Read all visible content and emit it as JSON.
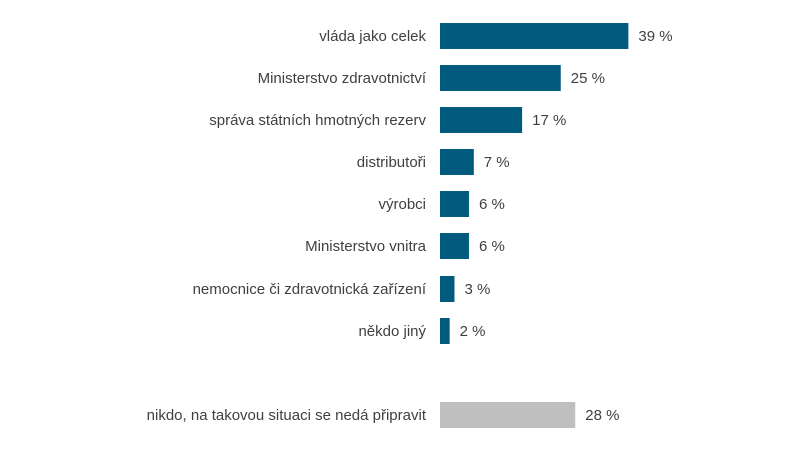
{
  "chart_data": {
    "type": "bar",
    "orientation": "horizontal",
    "categories": [
      "vláda jako celek",
      "Ministerstvo zdravotnictví",
      "správa státních hmotných rezerv",
      "distributoři",
      "výrobci",
      "Ministerstvo vnitra",
      "nemocnice či zdravotnická zařízení",
      "někdo jiný",
      "nikdo, na takovou situaci se nedá připravit"
    ],
    "values": [
      39,
      25,
      17,
      7,
      6,
      6,
      3,
      2,
      28
    ],
    "value_labels": [
      "39 %",
      "25 %",
      "17 %",
      "7 %",
      "6 %",
      "6 %",
      "3 %",
      "2 %",
      "28 %"
    ],
    "unit": "%",
    "colors": {
      "primary": "#005b7f",
      "nobody": "#bfbfbf"
    },
    "grid": false,
    "legend": "none"
  }
}
